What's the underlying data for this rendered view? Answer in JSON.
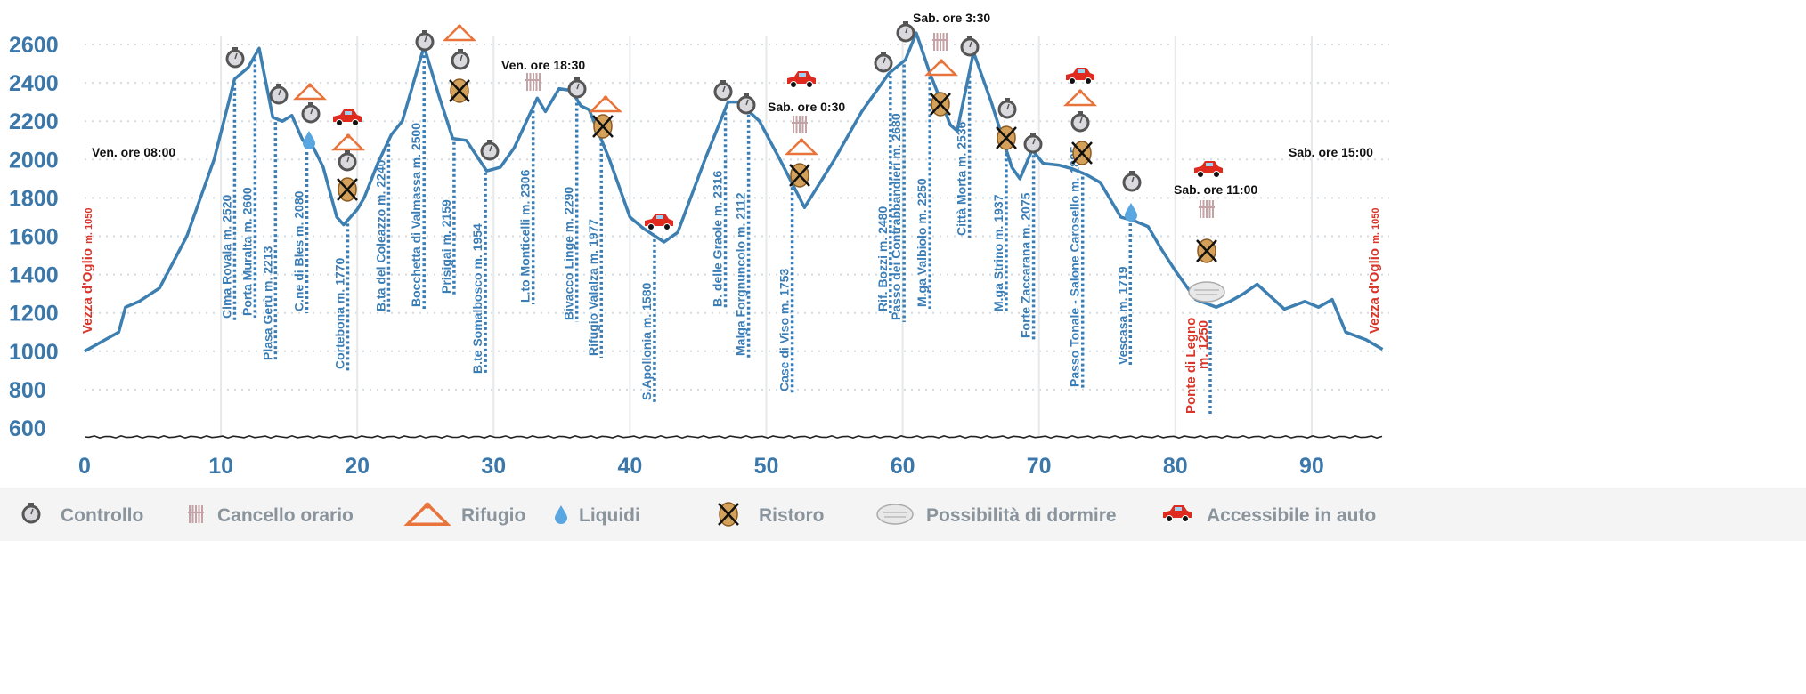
{
  "chart_data": {
    "type": "line",
    "xlabel": "",
    "ylabel": "",
    "xlim": [
      0,
      95.5
    ],
    "ylim": [
      600,
      2700
    ],
    "x_ticks": [
      0,
      10,
      20,
      30,
      40,
      50,
      60,
      70,
      80,
      90
    ],
    "y_ticks": [
      600,
      800,
      1000,
      1200,
      1400,
      1600,
      1800,
      2000,
      2200,
      2400,
      2600
    ],
    "grid": true,
    "colors": {
      "profile": "#3d7fb1",
      "axis_text": "#3b77a8",
      "start_end": "#d8352a",
      "legend_text": "#8a949c"
    },
    "series": [
      {
        "x": [
          0,
          1.5,
          2.5,
          3,
          4,
          5.5,
          7.5,
          9.5,
          11,
          12,
          12.8,
          13.8,
          14.5,
          15.2,
          16,
          16.8,
          17.5,
          18.5,
          19,
          20,
          20.5,
          21.5,
          22.5,
          23.3,
          24.9,
          26,
          27,
          28,
          29.5,
          30.5,
          31.5,
          33.2,
          33.8,
          34.8,
          35.7,
          36.4,
          37,
          38.5,
          40,
          41,
          42.5,
          43.5,
          45.5,
          47.2,
          48,
          49.5,
          51,
          52.8,
          55,
          57,
          59,
          60.2,
          61,
          62,
          63.5,
          64,
          65.2,
          66.5,
          68,
          68.6,
          69.5,
          70.3,
          71.5,
          72.5,
          73.5,
          74.5,
          76,
          77,
          78,
          79,
          80,
          81.5,
          83,
          84,
          85,
          86,
          88,
          89.5,
          90.5,
          91.5,
          92.5,
          94,
          95.2
        ],
        "y": [
          1000,
          1060,
          1100,
          1230,
          1260,
          1330,
          1600,
          2000,
          2420,
          2480,
          2580,
          2220,
          2200,
          2230,
          2100,
          2060,
          1960,
          1700,
          1660,
          1740,
          1800,
          1980,
          2130,
          2200,
          2590,
          2330,
          2110,
          2100,
          1940,
          1960,
          2060,
          2320,
          2250,
          2370,
          2360,
          2280,
          2260,
          2000,
          1700,
          1640,
          1570,
          1620,
          2000,
          2300,
          2300,
          2200,
          2000,
          1750,
          2000,
          2250,
          2450,
          2520,
          2660,
          2450,
          2180,
          2150,
          2560,
          2300,
          1960,
          1900,
          2050,
          1980,
          1970,
          1950,
          1920,
          1880,
          1700,
          1680,
          1650,
          1530,
          1420,
          1270,
          1230,
          1260,
          1300,
          1350,
          1220,
          1260,
          1230,
          1270,
          1100,
          1060,
          1010
        ]
      }
    ],
    "waypoints": [
      {
        "km": 11.0,
        "elevation": 2520,
        "label": "Cima Rovaia m. 2520"
      },
      {
        "km": 12.5,
        "elevation": 2600,
        "label": "Porta Muralta m. 2600"
      },
      {
        "km": 14.0,
        "elevation": 2213,
        "label": "Plasa Gerù m. 2213"
      },
      {
        "km": 16.3,
        "elevation": 2080,
        "label": "C.ne di Bles m. 2080"
      },
      {
        "km": 19.3,
        "elevation": 1770,
        "label": "Cortebona m. 1770"
      },
      {
        "km": 22.3,
        "elevation": 2240,
        "label": "B.ta del Coleazzo m. 2240"
      },
      {
        "km": 24.9,
        "elevation": 2500,
        "label": "Bocchetta di Valmassa m. 2500"
      },
      {
        "km": 27.1,
        "elevation": 2159,
        "label": "Prisigai m. 2159"
      },
      {
        "km": 29.4,
        "elevation": 1954,
        "label": "B.te Somalbosco m. 1954"
      },
      {
        "km": 32.9,
        "elevation": 2306,
        "label": "L.to Monticelli m. 2306"
      },
      {
        "km": 36.1,
        "elevation": 2290,
        "label": "Bivacco Linge m. 2290"
      },
      {
        "km": 37.9,
        "elevation": 1977,
        "label": "Rifugio Valalza m. 1977"
      },
      {
        "km": 41.8,
        "elevation": 1580,
        "label": "S.Apollonia m. 1580"
      },
      {
        "km": 47.0,
        "elevation": 2316,
        "label": "B. delle Graole m. 2316"
      },
      {
        "km": 48.7,
        "elevation": 2112,
        "label": "Malga Forgnuncolo m. 2112"
      },
      {
        "km": 51.9,
        "elevation": 1753,
        "label": "Case di Viso m. 1753"
      },
      {
        "km": 59.1,
        "elevation": 2480,
        "label": "Rif. Bozzi m. 2480"
      },
      {
        "km": 60.1,
        "elevation": 2680,
        "label": "Passo dei Contrabbandieri m. 2680"
      },
      {
        "km": 62.0,
        "elevation": 2250,
        "label": "M.ga Valbiolo m. 2250"
      },
      {
        "km": 64.9,
        "elevation": 2536,
        "label": "Città Morta m. 2536"
      },
      {
        "km": 67.6,
        "elevation": 1937,
        "label": "M.ga Strino m. 1937"
      },
      {
        "km": 69.6,
        "elevation": 2075,
        "label": "Forte Zaccarana m. 2075"
      },
      {
        "km": 73.2,
        "elevation": 1885,
        "label": "Passo Tonale - Salone Carosello m. 1885"
      },
      {
        "km": 76.7,
        "elevation": 1719,
        "label": "Vescasa m. 1719"
      }
    ],
    "start": {
      "name": "Vezza d'Oglio",
      "elev": "m. 1050"
    },
    "end": {
      "name": "Vezza d'Oglio",
      "elev": "m. 1050"
    },
    "ponte": {
      "name": "Ponte di Legno",
      "elev": "m. 1250"
    },
    "times": [
      "Ven. ore 08:00",
      "Ven. ore 18:30",
      "Sab. ore 0:30",
      "Sab. ore 3:30",
      "Sab. ore 11:00",
      "Sab. ore 15:00"
    ],
    "icons": [
      "controllo",
      "controllo",
      "rifugio",
      "controllo",
      "liquidi",
      "auto",
      "rifugio",
      "controllo",
      "ristoro",
      "controllo",
      "rifugio",
      "controllo",
      "ristoro",
      "controllo",
      "cancello",
      "controllo",
      "rifugio",
      "ristoro",
      "auto",
      "controllo",
      "controllo",
      "auto",
      "cancello",
      "rifugio",
      "ristoro",
      "controllo",
      "controllo",
      "cancello",
      "rifugio",
      "ristoro",
      "controllo",
      "controllo",
      "ristoro",
      "controllo",
      "auto",
      "rifugio",
      "controllo",
      "ristoro",
      "controllo",
      "liquidi",
      "auto",
      "cancello",
      "ristoro",
      "dormire"
    ]
  },
  "legend": [
    {
      "icon": "controllo",
      "label": "Controllo"
    },
    {
      "icon": "cancello",
      "label": "Cancello orario"
    },
    {
      "icon": "rifugio",
      "label": "Rifugio"
    },
    {
      "icon": "liquidi",
      "label": "Liquidi"
    },
    {
      "icon": "ristoro",
      "label": "Ristoro"
    },
    {
      "icon": "dormire",
      "label": "Possibilità di dormire"
    },
    {
      "icon": "auto",
      "label": "Accessibile in auto"
    }
  ]
}
